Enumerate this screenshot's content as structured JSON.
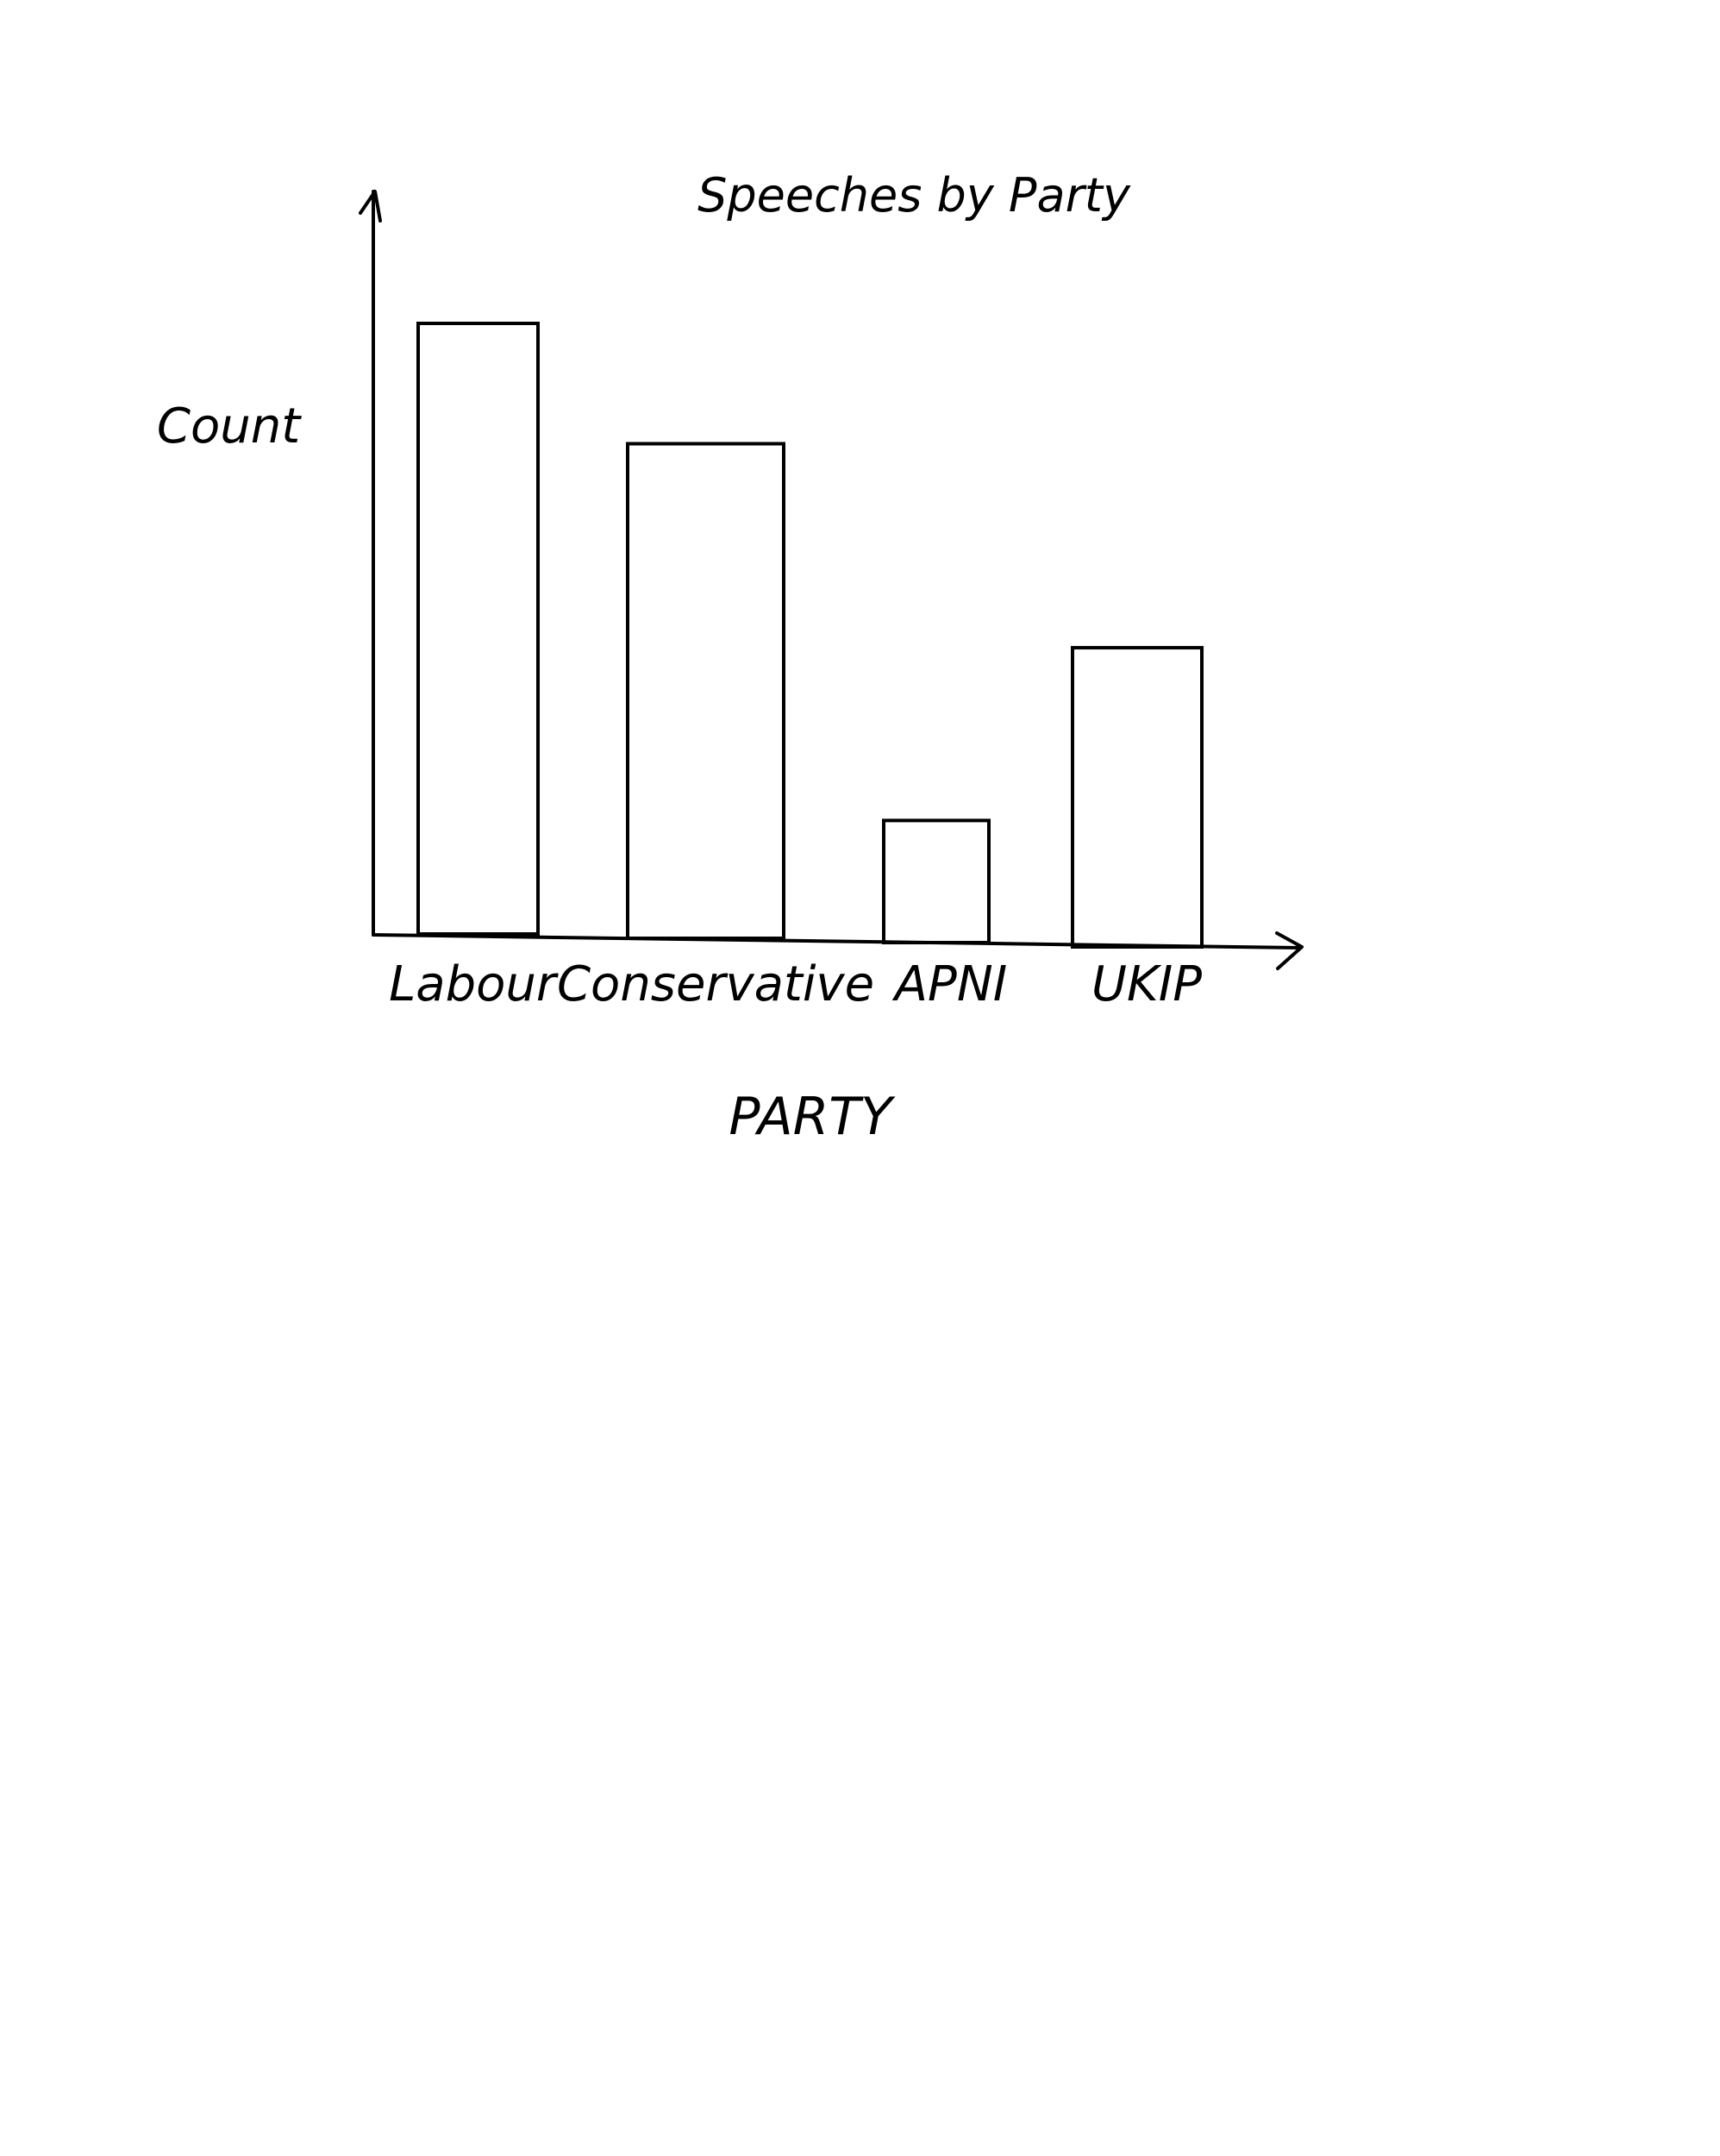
{
  "chart_data": {
    "type": "bar",
    "title": "Speeches by Party",
    "xlabel": "PARTY",
    "ylabel": "Count",
    "categories": [
      "Labour",
      "Conservative",
      "APNI",
      "UKIP"
    ],
    "values": [
      100,
      81,
      20,
      49
    ],
    "ylim": [
      0,
      100
    ],
    "grid": false,
    "legend": "none",
    "colors": {
      "stroke": "#000000",
      "background": "#ffffff"
    }
  }
}
